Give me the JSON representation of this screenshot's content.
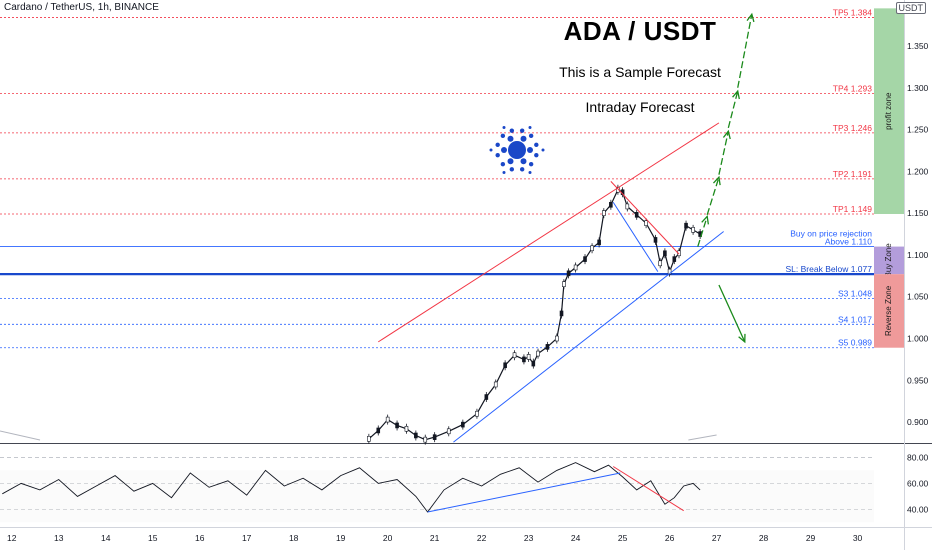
{
  "header": {
    "symbol": "Cardano / TetherUS, 1h, BINANCE",
    "title": "ADA / USDT",
    "subtitle": "This is a Sample Forecast",
    "subtitle2": "Intraday Forecast",
    "quote_badge": "USDT"
  },
  "zones": {
    "profit": {
      "label": "profit zone",
      "from": 1.149,
      "to": 1.395,
      "color": "#a5d6a7"
    },
    "buy": {
      "label": "Buy Zone",
      "from": 1.077,
      "to": 1.11,
      "color": "#b39ddb"
    },
    "reverse": {
      "label": "Reverse Zone",
      "from": 0.989,
      "to": 1.077,
      "color": "#ef9a9a"
    }
  },
  "chart_data": [
    {
      "type": "line",
      "xlabel": "",
      "ylabel": "",
      "x_ticks": [
        "12",
        "13",
        "14",
        "15",
        "16",
        "17",
        "18",
        "19",
        "20",
        "21",
        "22",
        "23",
        "24",
        "25",
        "26",
        "27",
        "28",
        "29",
        "30"
      ],
      "y_ticks": [
        0.9,
        0.95,
        1.0,
        1.05,
        1.1,
        1.15,
        1.2,
        1.25,
        1.3,
        1.35
      ],
      "y_tick_labels": [
        "0.900",
        "0.950",
        "1.000",
        "1.050",
        "1.100",
        "1.150",
        "1.200",
        "1.250",
        "1.300",
        "1.350"
      ],
      "ylim": [
        0.875,
        1.405
      ],
      "xlim": [
        11.75,
        30.35
      ],
      "levels": [
        {
          "label": "TP5 1.384",
          "value": 1.384,
          "color": "#f23645",
          "style": "dotted"
        },
        {
          "label": "TP4 1.293",
          "value": 1.293,
          "color": "#f23645",
          "style": "dotted"
        },
        {
          "label": "TP3 1.246",
          "value": 1.246,
          "color": "#f23645",
          "style": "dotted"
        },
        {
          "label": "TP2 1.191",
          "value": 1.191,
          "color": "#f23645",
          "style": "dotted"
        },
        {
          "label": "TP1 1.149",
          "value": 1.149,
          "color": "#f23645",
          "style": "dotted"
        },
        {
          "label": "Above 1.110",
          "value": 1.11,
          "color": "#2962ff",
          "style": "solid",
          "note": "Buy on price rejection"
        },
        {
          "label": "SL: Break Below 1.077",
          "value": 1.077,
          "color": "#1848cc",
          "style": "thick"
        },
        {
          "label": "S3 1.048",
          "value": 1.048,
          "color": "#2962ff",
          "style": "dotted"
        },
        {
          "label": "S4 1.017",
          "value": 1.017,
          "color": "#2962ff",
          "style": "dotted"
        },
        {
          "label": "S5 0.989",
          "value": 0.989,
          "color": "#2962ff",
          "style": "dotted"
        }
      ],
      "price": {
        "x": [
          19.6,
          19.8,
          20.0,
          20.2,
          20.4,
          20.6,
          20.8,
          21.0,
          21.3,
          21.6,
          21.9,
          22.1,
          22.3,
          22.5,
          22.7,
          22.9,
          23.0,
          23.1,
          23.2,
          23.4,
          23.6,
          23.7,
          23.75,
          23.85,
          24.0,
          24.2,
          24.35,
          24.5,
          24.6,
          24.75,
          24.9,
          25.0,
          25.1,
          25.3,
          25.5,
          25.7,
          25.8,
          25.9,
          26.0,
          26.1,
          26.2,
          26.35,
          26.5,
          26.65
        ],
        "y": [
          0.88,
          0.89,
          0.903,
          0.896,
          0.892,
          0.884,
          0.879,
          0.882,
          0.889,
          0.897,
          0.91,
          0.93,
          0.945,
          0.968,
          0.98,
          0.975,
          0.978,
          0.97,
          0.982,
          0.99,
          1.0,
          1.03,
          1.065,
          1.078,
          1.085,
          1.095,
          1.108,
          1.115,
          1.15,
          1.16,
          1.178,
          1.175,
          1.158,
          1.148,
          1.138,
          1.118,
          1.09,
          1.102,
          1.08,
          1.095,
          1.102,
          1.135,
          1.13,
          1.125
        ]
      },
      "trendlines": [
        {
          "name": "channel-top",
          "x": [
            19.8,
            27.05
          ],
          "y": [
            0.996,
            1.258
          ],
          "color": "#f23645"
        },
        {
          "name": "channel-bottom",
          "x": [
            21.4,
            27.15
          ],
          "y": [
            0.876,
            1.128
          ],
          "color": "#2962ff"
        },
        {
          "name": "falling-top",
          "x": [
            24.75,
            26.2
          ],
          "y": [
            1.188,
            1.101
          ],
          "color": "#f23645"
        },
        {
          "name": "falling-bottom",
          "x": [
            24.8,
            25.75
          ],
          "y": [
            1.163,
            1.08
          ],
          "color": "#2962ff"
        }
      ],
      "forecast_arrows": [
        {
          "x": [
            26.6,
            26.8
          ],
          "y": [
            1.11,
            1.146
          ]
        },
        {
          "x": [
            26.8,
            27.05
          ],
          "y": [
            1.148,
            1.193
          ]
        },
        {
          "x": [
            27.05,
            27.25
          ],
          "y": [
            1.196,
            1.248
          ]
        },
        {
          "x": [
            27.25,
            27.45
          ],
          "y": [
            1.252,
            1.296
          ]
        },
        {
          "x": [
            27.45,
            27.75
          ],
          "y": [
            1.3,
            1.388
          ]
        },
        {
          "x": [
            27.05,
            27.6
          ],
          "y": [
            1.064,
            0.996
          ]
        }
      ]
    },
    {
      "type": "line",
      "name": "RSI",
      "xlabel": "",
      "ylabel": "",
      "ylim": [
        28,
        88
      ],
      "y_ticks": [
        40,
        60,
        80
      ],
      "y_tick_labels": [
        "40.00",
        "60.00",
        "80.00"
      ],
      "series": [
        {
          "x": [
            11.8,
            12.2,
            12.6,
            13.0,
            13.4,
            13.8,
            14.2,
            14.6,
            15.0,
            15.4,
            15.8,
            16.2,
            16.6,
            17.0,
            17.4,
            17.8,
            18.2,
            18.6,
            19.0,
            19.4,
            19.8,
            20.2,
            20.6,
            20.85,
            21.2,
            21.6,
            22.0,
            22.4,
            22.8,
            23.2,
            23.6,
            24.0,
            24.4,
            24.7,
            25.0,
            25.3,
            25.6,
            25.9,
            26.1,
            26.3,
            26.5,
            26.65
          ],
          "y": [
            52,
            60,
            55,
            63,
            50,
            58,
            66,
            54,
            60,
            49,
            68,
            57,
            62,
            51,
            70,
            58,
            64,
            55,
            66,
            72,
            60,
            63,
            50,
            38,
            55,
            64,
            58,
            67,
            72,
            61,
            70,
            76,
            69,
            74,
            65,
            55,
            62,
            44,
            49,
            58,
            60,
            55
          ]
        }
      ],
      "trendlines": [
        {
          "name": "rsi-support",
          "x": [
            20.85,
            24.95
          ],
          "y": [
            38,
            68
          ],
          "color": "#2962ff"
        },
        {
          "name": "rsi-resistance",
          "x": [
            24.8,
            26.3
          ],
          "y": [
            73,
            39
          ],
          "color": "#f23645"
        }
      ]
    }
  ]
}
